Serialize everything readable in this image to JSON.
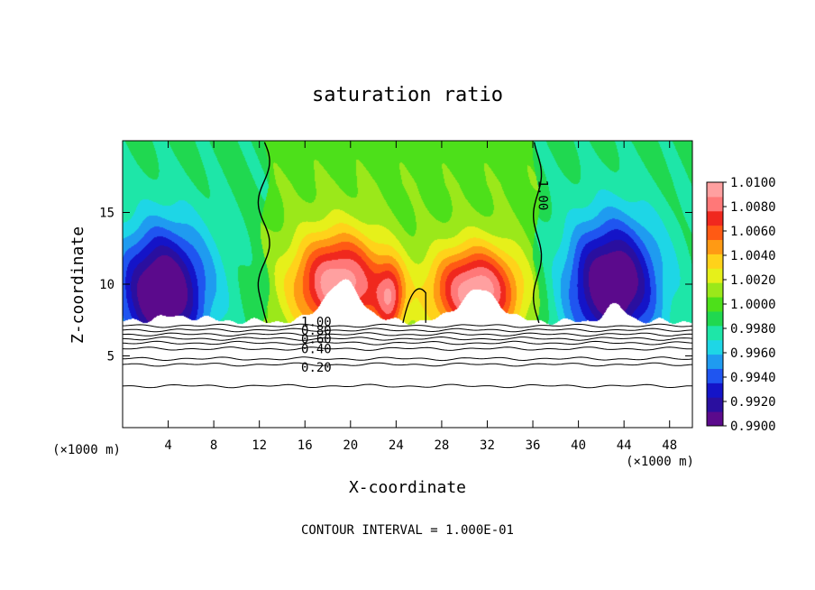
{
  "chart_data": {
    "type": "heatmap",
    "title": "saturation ratio",
    "xlabel": "X-coordinate",
    "ylabel": "Z-coordinate",
    "x_unit_left": "(×1000 m)",
    "x_unit_right": "(×1000 m)",
    "xlim": [
      0,
      50
    ],
    "ylim": [
      0,
      20
    ],
    "x_ticks": [
      4,
      8,
      12,
      16,
      20,
      24,
      28,
      32,
      36,
      40,
      44,
      48
    ],
    "y_ticks": [
      5,
      10,
      15
    ],
    "footer": "CONTOUR INTERVAL = 1.000E-01",
    "colorbar": {
      "min": 0.99,
      "max": 1.01,
      "labels": [
        "1.0100",
        "1.0080",
        "1.0060",
        "1.0040",
        "1.0020",
        "1.0000",
        "0.9980",
        "0.9960",
        "0.9940",
        "0.9920",
        "0.9900"
      ],
      "colors": [
        "#5b0a8c",
        "#2a0f9f",
        "#1414c8",
        "#1f55f0",
        "#1f9bf0",
        "#1ed6e6",
        "#1ee6a8",
        "#20d850",
        "#4de01a",
        "#9be81a",
        "#e6f01a",
        "#ffd21a",
        "#ff9a14",
        "#ff5a14",
        "#f0281e",
        "#ff7878",
        "#ffa0a0"
      ]
    },
    "contour_labels": [
      {
        "text": "1.00",
        "x": 36.5,
        "y": 16.2
      },
      {
        "text": "1.00",
        "x": 17.0,
        "y": 7.4
      },
      {
        "text": "0.80",
        "x": 17.0,
        "y": 6.8
      },
      {
        "text": "0.60",
        "x": 17.0,
        "y": 6.2
      },
      {
        "text": "0.40",
        "x": 17.0,
        "y": 5.5
      },
      {
        "text": "0.20",
        "x": 17.0,
        "y": 4.2
      }
    ],
    "flat_contours": [
      7.1,
      6.8,
      6.5,
      6.2,
      5.9,
      5.5,
      4.8,
      4.4,
      2.9
    ],
    "hotspots": [
      {
        "x": 19.0,
        "z": 10.0,
        "peak": 1.01,
        "spread_x": 4.2,
        "spread_z": 3.6
      },
      {
        "x": 31.0,
        "z": 9.5,
        "peak": 1.01,
        "spread_x": 4.0,
        "spread_z": 3.2
      },
      {
        "x": 23.5,
        "z": 9.0,
        "peak": 1.006,
        "spread_x": 1.2,
        "spread_z": 2.5
      }
    ],
    "coldspots": [
      {
        "x": 3.5,
        "z": 9.5,
        "peak": 0.9905,
        "spread_x": 4.0,
        "spread_z": 4.5
      },
      {
        "x": 43.0,
        "z": 10.0,
        "peak": 0.9905,
        "spread_x": 4.0,
        "spread_z": 4.5
      }
    ]
  }
}
